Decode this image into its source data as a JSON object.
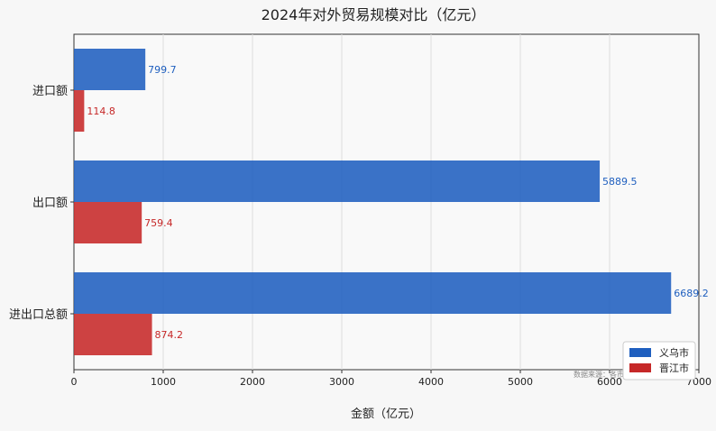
{
  "chart_data": {
    "type": "bar",
    "orientation": "horizontal",
    "title": "2024年对外贸易规模对比（亿元）",
    "xlabel": "金额（亿元）",
    "ylabel": "",
    "categories": [
      "进口额",
      "出口额",
      "进出口总额"
    ],
    "series": [
      {
        "name": "义乌市",
        "color": "#1f5fbf",
        "values": [
          799.7,
          5889.5,
          6689.2
        ]
      },
      {
        "name": "晋江市",
        "color": "#c62828",
        "values": [
          114.8,
          759.4,
          874.2
        ]
      }
    ],
    "xlim": [
      0,
      7000
    ],
    "xticks": [
      0,
      1000,
      2000,
      3000,
      4000,
      5000,
      6000,
      7000
    ],
    "grid": "vertical",
    "legend_position": "bottom-right",
    "source_note": "数据来源：各市"
  }
}
